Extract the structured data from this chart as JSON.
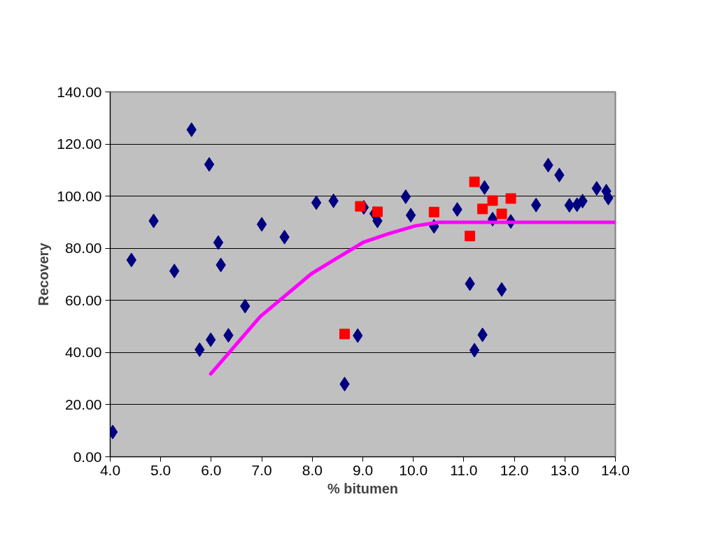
{
  "chart_data": {
    "type": "scatter",
    "xlabel": "% bitumen",
    "ylabel": "Recovery",
    "xlim": [
      4,
      14
    ],
    "ylim": [
      0,
      140
    ],
    "xticks": [
      {
        "value": 4,
        "label": "4.0"
      },
      {
        "value": 5,
        "label": "5.0"
      },
      {
        "value": 6,
        "label": "6.0"
      },
      {
        "value": 7,
        "label": "7.0"
      },
      {
        "value": 8,
        "label": "8.0"
      },
      {
        "value": 9,
        "label": "9.0"
      },
      {
        "value": 10,
        "label": "10.0"
      },
      {
        "value": 11,
        "label": "11.0"
      },
      {
        "value": 12,
        "label": "12.0"
      },
      {
        "value": 13,
        "label": "13.0"
      },
      {
        "value": 14,
        "label": "14.0"
      }
    ],
    "yticks": [
      {
        "value": 0,
        "label": "0.00"
      },
      {
        "value": 20,
        "label": "20.00"
      },
      {
        "value": 40,
        "label": "40.00"
      },
      {
        "value": 60,
        "label": "60.00"
      },
      {
        "value": 80,
        "label": "80.00"
      },
      {
        "value": 100,
        "label": "100.00"
      },
      {
        "value": 120,
        "label": "120.00"
      },
      {
        "value": 140,
        "label": "140.00"
      }
    ],
    "grid": "y",
    "series": [
      {
        "marker": "diamond",
        "color": "#000080",
        "x": [
          4.05,
          4.42,
          4.86,
          5.27,
          5.61,
          5.96,
          6.14,
          6.19,
          5.77,
          5.99,
          6.34,
          6.67,
          7.0,
          7.45,
          8.08,
          8.42,
          8.64,
          8.9,
          9.02,
          9.23,
          9.29,
          9.85,
          9.95,
          10.41,
          10.87,
          11.41,
          11.57,
          11.93,
          11.12,
          11.75,
          11.37,
          11.21,
          12.43,
          12.67,
          12.89,
          13.09,
          13.24,
          13.35,
          13.63,
          13.82,
          13.86
        ],
        "values": [
          9.5,
          75.5,
          90.5,
          71.3,
          125.5,
          112.2,
          82.2,
          73.6,
          41.1,
          44.9,
          46.6,
          57.8,
          89.2,
          84.3,
          97.5,
          98.2,
          27.9,
          46.5,
          95.7,
          93.3,
          90.5,
          99.8,
          92.7,
          88.4,
          94.9,
          103.3,
          91.2,
          90.3,
          66.4,
          64.2,
          46.8,
          40.9,
          96.6,
          111.9,
          108.1,
          96.5,
          96.7,
          98.1,
          103.0,
          101.9,
          99.3
        ]
      },
      {
        "marker": "square",
        "color": "#ff0000",
        "x": [
          8.64,
          8.95,
          9.29,
          10.41,
          11.21,
          11.57,
          11.37,
          11.75,
          11.93,
          11.12
        ],
        "values": [
          47.1,
          96.1,
          94.0,
          93.9,
          105.5,
          98.3,
          95.1,
          93.2,
          99.1,
          84.7
        ]
      },
      {
        "type": "line",
        "marker": "none",
        "color": "#ff00ff",
        "x": [
          5.99,
          6.97,
          7.98,
          8.47,
          9.02,
          9.51,
          10.04,
          10.51,
          11.0,
          12.0,
          13.0,
          14.0
        ],
        "values": [
          31.8,
          53.8,
          70.2,
          76.0,
          82.4,
          85.6,
          88.6,
          90.0,
          90.0,
          90.0,
          90.0,
          90.0
        ]
      }
    ]
  }
}
